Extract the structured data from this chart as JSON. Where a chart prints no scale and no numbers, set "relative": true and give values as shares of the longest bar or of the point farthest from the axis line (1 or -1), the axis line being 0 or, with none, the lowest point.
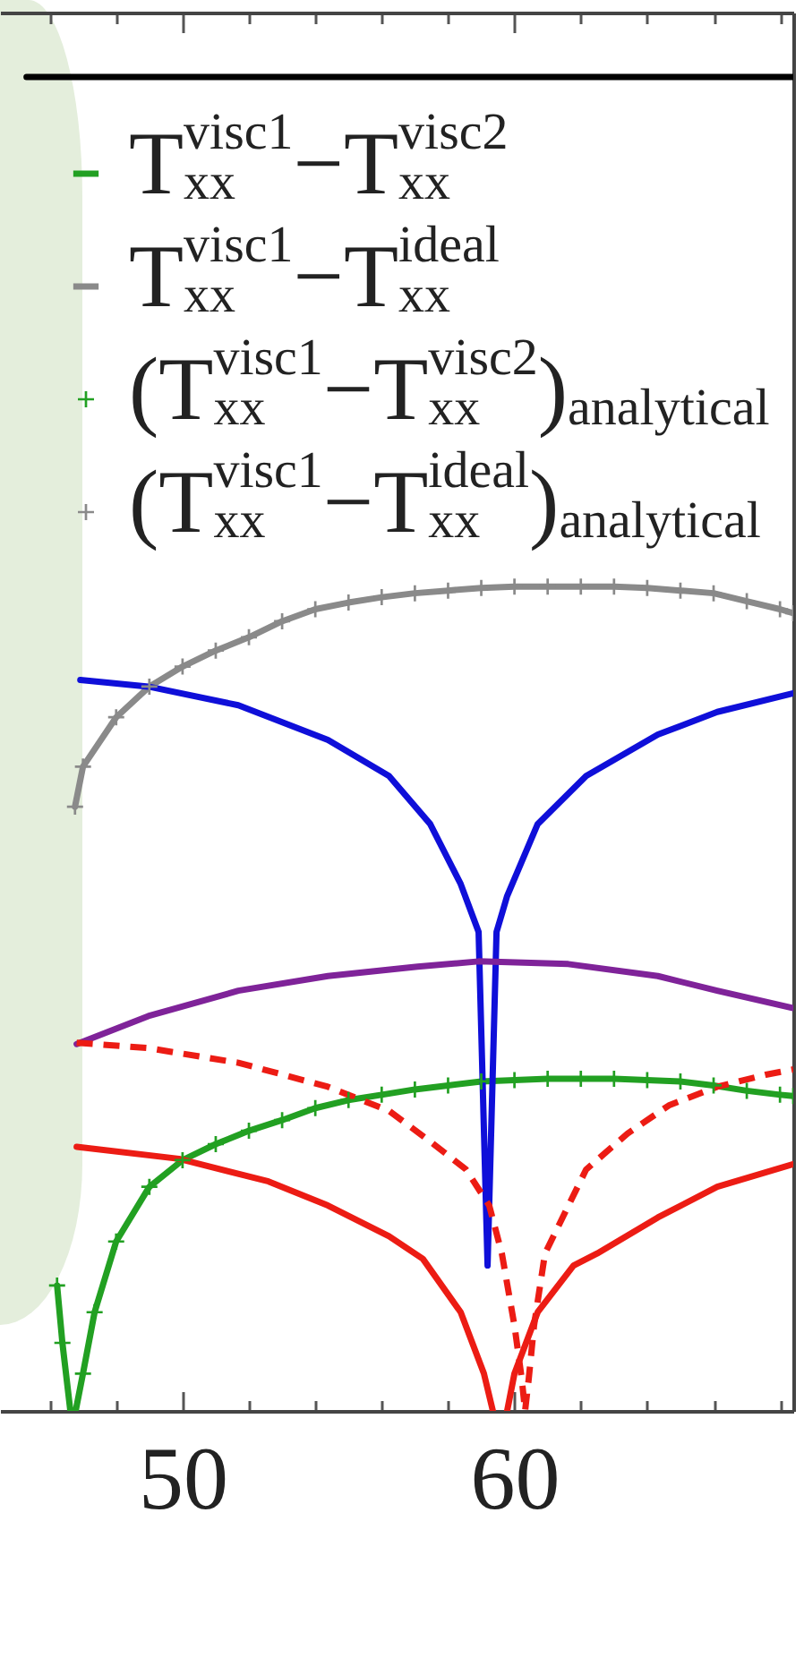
{
  "chart_data": {
    "type": "line",
    "relative": true,
    "legend": "top",
    "xlim": [
      44.5,
      68.4
    ],
    "xticks": [
      {
        "value": 46,
        "label": null
      },
      {
        "value": 48,
        "label": null
      },
      50,
      {
        "value": 52,
        "label": null
      },
      {
        "value": 54,
        "label": null
      },
      {
        "value": 56,
        "label": null
      },
      {
        "value": 58,
        "label": null
      },
      60,
      {
        "value": 62,
        "label": null
      },
      {
        "value": 64,
        "label": null
      },
      {
        "value": 66,
        "label": null
      },
      {
        "value": 68,
        "label": null
      }
    ],
    "series": [
      {
        "name": "T$^{visc1}$$_{xx}$−T$^{visc2}$$_{xx}$",
        "color": "#22a022",
        "x": [
          46.22,
          46.38,
          46.62,
          46.7,
          46.78,
          47,
          47.35,
          48,
          49,
          50,
          51,
          52,
          53,
          54,
          55,
          56,
          57,
          58,
          59,
          60,
          61,
          62,
          63,
          64,
          65,
          66,
          67,
          68,
          68.4
        ],
        "values": [
          0.094,
          0.051,
          0,
          null,
          0,
          0.028,
          0.074,
          0.127,
          0.168,
          0.188,
          0.2,
          0.21,
          0.218,
          0.227,
          0.233,
          0.237,
          0.241,
          0.244,
          0.247,
          0.248,
          0.249,
          0.249,
          0.249,
          0.248,
          0.247,
          0.244,
          0.24,
          0.237,
          0.236
        ]
      },
      {
        "name": "T$^{visc1}$$_{xx}$−T$^{ideal}$$_{xx}$",
        "color": "#8a8a8a",
        "x": [
          46.76,
          47,
          48,
          49,
          50,
          51,
          52,
          53,
          54,
          55,
          56,
          57,
          58,
          59,
          60,
          61,
          62,
          63,
          64,
          65,
          66,
          67,
          68,
          68.4
        ],
        "values": [
          0.453,
          0.483,
          0.52,
          0.543,
          0.558,
          0.57,
          0.58,
          0.592,
          0.601,
          0.606,
          0.61,
          0.613,
          0.615,
          0.617,
          0.618,
          0.618,
          0.618,
          0.618,
          0.617,
          0.615,
          0.613,
          0.607,
          0.601,
          0.598
        ]
      },
      {
        "color": "#000000",
        "x": [
          45.3,
          68.4
        ],
        "values": [
          1,
          1
        ]
      },
      {
        "color": "#0f0fd9",
        "x": [
          46.92,
          48.97,
          51.68,
          54.38,
          56.22,
          57.46,
          58.38,
          58.92,
          59.19,
          59.46,
          59.78,
          60.7,
          62.16,
          64.32,
          66.11,
          68.4
        ],
        "values": [
          0.548,
          0.543,
          0.529,
          0.503,
          0.476,
          0.44,
          0.395,
          0.359,
          0.109,
          0.359,
          0.386,
          0.44,
          0.476,
          0.507,
          0.524,
          0.538
        ]
      },
      {
        "color": "#7f2399",
        "x": [
          46.81,
          48.97,
          51.68,
          54.38,
          57.08,
          58.92,
          61.62,
          64.32,
          66.11,
          68.4
        ],
        "values": [
          0.275,
          0.296,
          0.315,
          0.326,
          0.333,
          0.337,
          0.335,
          0.326,
          0.315,
          0.302
        ]
      },
      {
        "color": "#ec1c14",
        "line_style": "dashed",
        "x": [
          46.81,
          48.97,
          51.68,
          54.38,
          56.22,
          57.46,
          58.54,
          59.24,
          59.62,
          60,
          60.22,
          60.32,
          60.43,
          60.59,
          60.92,
          62.16,
          63.41,
          64.65,
          66.11,
          67.57,
          68.4
        ],
        "values": [
          0.276,
          0.272,
          0.261,
          0.243,
          0.225,
          0.202,
          0.181,
          0.154,
          0.118,
          0.064,
          0.024,
          0,
          0.024,
          0.064,
          0.118,
          0.181,
          0.208,
          0.229,
          0.243,
          0.252,
          0.256
        ]
      },
      {
        "color": "#ec1c14",
        "x": [
          46.81,
          49.89,
          52.59,
          54.38,
          56.22,
          57.24,
          58.38,
          59.08,
          59.35,
          59.57,
          59.78,
          60,
          60.7,
          61.78,
          62.49,
          64.32,
          66.11,
          68.4
        ],
        "values": [
          0.198,
          0.189,
          0.172,
          0.154,
          0.131,
          0.114,
          0.074,
          0.028,
          0,
          null,
          0,
          0.028,
          0.074,
          0.109,
          0.118,
          0.145,
          0.168,
          0.185
        ]
      },
      {
        "name": "(T$^{visc1}$$_{xx}$−T$^{visc2}$$_{xx}$)$_{analytical}$",
        "color": "#22a022",
        "type": "scatter",
        "marker": "cross",
        "x": [
          46.22,
          46.38,
          47,
          47.35,
          48,
          49,
          50,
          51,
          52,
          53,
          54,
          55,
          56,
          57,
          58,
          59,
          60,
          61,
          62,
          63,
          64,
          65,
          66,
          67,
          68,
          68.4
        ],
        "values": [
          0.094,
          0.051,
          0.028,
          0.074,
          0.127,
          0.168,
          0.188,
          0.2,
          0.21,
          0.218,
          0.227,
          0.233,
          0.237,
          0.241,
          0.244,
          0.247,
          0.248,
          0.249,
          0.249,
          0.249,
          0.248,
          0.247,
          0.244,
          0.24,
          0.237,
          0.236
        ]
      },
      {
        "name": "(T$^{visc1}$$_{xx}$−T$^{ideal}$$_{xx}$)$_{analytical}$",
        "color": "#8a8a8a",
        "type": "scatter",
        "marker": "cross",
        "x": [
          46.76,
          47,
          48,
          49,
          50,
          51,
          52,
          53,
          54,
          55,
          56,
          57,
          58,
          59,
          60,
          61,
          62,
          63,
          64,
          65,
          66,
          67,
          68,
          68.4
        ],
        "values": [
          0.453,
          0.483,
          0.52,
          0.543,
          0.558,
          0.57,
          0.58,
          0.592,
          0.601,
          0.606,
          0.61,
          0.613,
          0.615,
          0.617,
          0.618,
          0.618,
          0.618,
          0.618,
          0.617,
          0.615,
          0.613,
          0.607,
          0.601,
          0.598
        ]
      }
    ]
  }
}
